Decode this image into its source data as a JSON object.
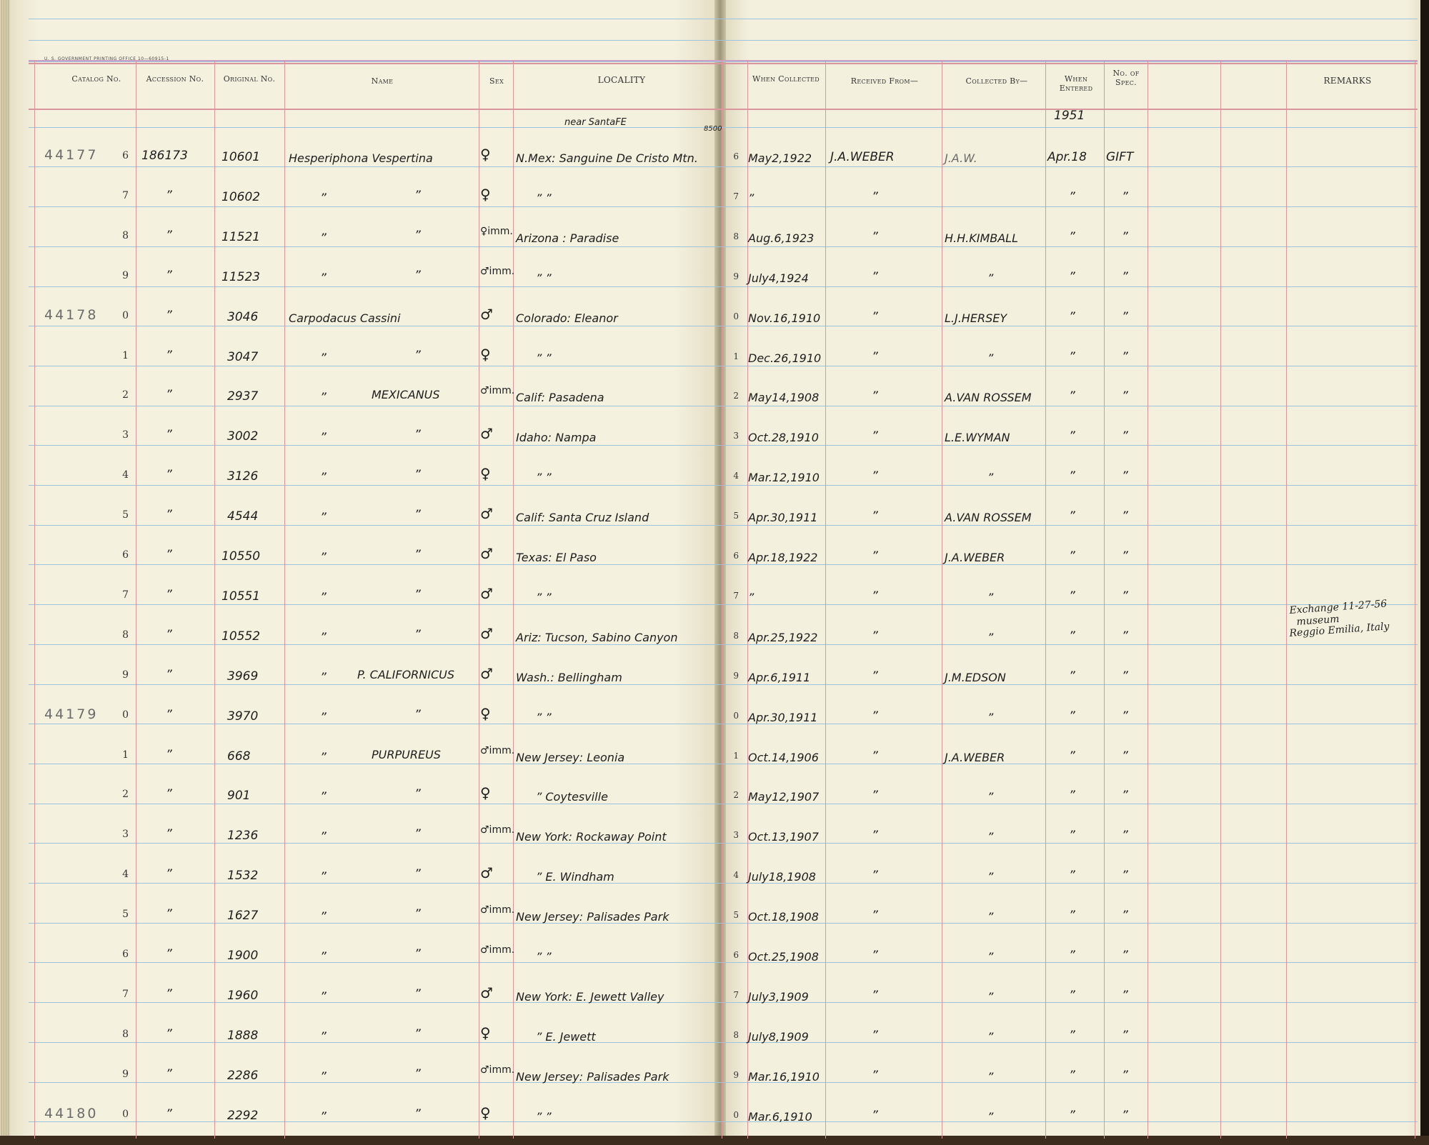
{
  "header": {
    "printer": "U. S. GOVERNMENT PRINTING OFFICE    10—60915-1",
    "columns": {
      "catalog": "Catalog No.",
      "accession": "Accession No.",
      "original": "Original No.",
      "name": "Name",
      "sex": "Sex",
      "locality": "LOCALITY",
      "when_collected": "When Collected",
      "received_from": "Received From—",
      "collected_by": "Collected By—",
      "when_entered": "When Entered",
      "no_spec": "No. of Spec.",
      "remarks": "REMARKS"
    }
  },
  "annotations": {
    "near_santa_fe": "near SantaFE",
    "elevation": "8500",
    "year_entered": "1951"
  },
  "catalog_markers": [
    "44177",
    "44178",
    "44179",
    "44180"
  ],
  "rows": [
    {
      "catalog": "44177",
      "idx": "6",
      "accession": "186173",
      "original": "10601",
      "name": "Hesperiphona Vespertina",
      "sex": "♀",
      "locality": "N.Mex: Sanguine De Cristo Mtn.",
      "ridx": "6",
      "when": "May2,1922",
      "received": "J.A.WEBER",
      "collected": "J.A.W.",
      "entered": "Apr.18",
      "spec": "GIFT"
    },
    {
      "idx": "7",
      "accession": "”",
      "original": "10602",
      "name_a": "”",
      "name_b": "”",
      "sex": "♀",
      "locality": "”      ”",
      "ridx": "7",
      "when": "”",
      "received": "”",
      "collected": "",
      "entered": "”",
      "spec": "”"
    },
    {
      "idx": "8",
      "accession": "”",
      "original": "11521",
      "name_a": "”",
      "name_b": "”",
      "sex": "♀imm.",
      "locality": "Arizona : Paradise",
      "ridx": "8",
      "when": "Aug.6,1923",
      "received": "”",
      "collected": "H.H.KIMBALL",
      "entered": "”",
      "spec": "”"
    },
    {
      "idx": "9",
      "accession": "”",
      "original": "11523",
      "name_a": "”",
      "name_b": "”",
      "sex": "♂imm.",
      "locality": "”           ”",
      "ridx": "9",
      "when": "July4,1924",
      "received": "”",
      "collected": "”",
      "entered": "”",
      "spec": "”"
    },
    {
      "catalog": "44178",
      "idx": "0",
      "accession": "”",
      "original": "3046",
      "name": "Carpodacus Cassini",
      "sex": "♂",
      "locality": "Colorado: Eleanor",
      "ridx": "0",
      "when": "Nov.16,1910",
      "received": "”",
      "collected": "L.J.HERSEY",
      "entered": "”",
      "spec": "”"
    },
    {
      "idx": "1",
      "accession": "”",
      "original": "3047",
      "name_a": "”",
      "name_b": "”",
      "sex": "♀",
      "locality": "”          ”",
      "ridx": "1",
      "when": "Dec.26,1910",
      "received": "”",
      "collected": "”",
      "entered": "”",
      "spec": "”"
    },
    {
      "idx": "2",
      "accession": "”",
      "original": "2937",
      "name_a": "”",
      "name_b": "MEXICANUS",
      "sex": "♂imm.",
      "locality": "Calif: Pasadena",
      "ridx": "2",
      "when": "May14,1908",
      "received": "”",
      "collected": "A.VAN ROSSEM",
      "entered": "”",
      "spec": "”"
    },
    {
      "idx": "3",
      "accession": "”",
      "original": "3002",
      "name_a": "”",
      "name_b": "”",
      "sex": "♂",
      "locality": "Idaho: Nampa",
      "ridx": "3",
      "when": "Oct.28,1910",
      "received": "”",
      "collected": "L.E.WYMAN",
      "entered": "”",
      "spec": "”"
    },
    {
      "idx": "4",
      "accession": "”",
      "original": "3126",
      "name_a": "”",
      "name_b": "”",
      "sex": "♀",
      "locality": "”          ”",
      "ridx": "4",
      "when": "Mar.12,1910",
      "received": "”",
      "collected": "”",
      "entered": "”",
      "spec": "”"
    },
    {
      "idx": "5",
      "accession": "”",
      "original": "4544",
      "name_a": "”",
      "name_b": "”",
      "sex": "♂",
      "locality": "Calif: Santa Cruz Island",
      "ridx": "5",
      "when": "Apr.30,1911",
      "received": "”",
      "collected": "A.VAN ROSSEM",
      "entered": "”",
      "spec": "”"
    },
    {
      "idx": "6",
      "accession": "”",
      "original": "10550",
      "name_a": "”",
      "name_b": "”",
      "sex": "♂",
      "locality": "Texas: El Paso",
      "ridx": "6",
      "when": "Apr.18,1922",
      "received": "”",
      "collected": "J.A.WEBER",
      "entered": "”",
      "spec": "”"
    },
    {
      "idx": "7",
      "accession": "”",
      "original": "10551",
      "name_a": "”",
      "name_b": "”",
      "sex": "♂",
      "locality": "”          ”",
      "ridx": "7",
      "when": "”",
      "received": "”",
      "collected": "”",
      "entered": "”",
      "spec": "”"
    },
    {
      "idx": "8",
      "accession": "”",
      "original": "10552",
      "name_a": "”",
      "name_b": "”",
      "sex": "♂",
      "locality": "Ariz: Tucson, Sabino Canyon",
      "ridx": "8",
      "when": "Apr.25,1922",
      "received": "”",
      "collected": "”",
      "entered": "”",
      "spec": "”",
      "remark": [
        "Exchange 11-27-56",
        "museum",
        "Reggio Emilia, Italy"
      ]
    },
    {
      "idx": "9",
      "accession": "”",
      "original": "3969",
      "name_a": "”",
      "name_b": "P. CALIFORNICUS",
      "sex": "♂",
      "locality": "Wash.: Bellingham",
      "ridx": "9",
      "when": "Apr.6,1911",
      "received": "”",
      "collected": "J.M.EDSON",
      "entered": "”",
      "spec": "”"
    },
    {
      "catalog": "44179",
      "idx": "0",
      "accession": "”",
      "original": "3970",
      "name_a": "”",
      "name_b": "”",
      "sex": "♀",
      "locality": "”          ”",
      "ridx": "0",
      "when": "Apr.30,1911",
      "received": "”",
      "collected": "”",
      "entered": "”",
      "spec": "”"
    },
    {
      "idx": "1",
      "accession": "”",
      "original": "668",
      "name_a": "”",
      "name_b": "PURPUREUS",
      "sex": "♂imm.",
      "locality": "New Jersey: Leonia",
      "ridx": "1",
      "when": "Oct.14,1906",
      "received": "”",
      "collected": "J.A.WEBER",
      "entered": "”",
      "spec": "”"
    },
    {
      "idx": "2",
      "accession": "”",
      "original": "901",
      "name_a": "”",
      "name_b": "”",
      "sex": "♀",
      "locality": "”       Coytesville",
      "ridx": "2",
      "when": "May12,1907",
      "received": "”",
      "collected": "”",
      "entered": "”",
      "spec": "”"
    },
    {
      "idx": "3",
      "accession": "”",
      "original": "1236",
      "name_a": "”",
      "name_b": "”",
      "sex": "♂imm.",
      "locality": "New York: Rockaway Point",
      "ridx": "3",
      "when": "Oct.13,1907",
      "received": "”",
      "collected": "”",
      "entered": "”",
      "spec": "”"
    },
    {
      "idx": "4",
      "accession": "”",
      "original": "1532",
      "name_a": "”",
      "name_b": "”",
      "sex": "♂",
      "locality": "”    E. Windham",
      "ridx": "4",
      "when": "July18,1908",
      "received": "”",
      "collected": "”",
      "entered": "”",
      "spec": "”"
    },
    {
      "idx": "5",
      "accession": "”",
      "original": "1627",
      "name_a": "”",
      "name_b": "”",
      "sex": "♂imm.",
      "locality": "New Jersey: Palisades Park",
      "ridx": "5",
      "when": "Oct.18,1908",
      "received": "”",
      "collected": "”",
      "entered": "”",
      "spec": "”"
    },
    {
      "idx": "6",
      "accession": "”",
      "original": "1900",
      "name_a": "”",
      "name_b": "”",
      "sex": "♂imm.",
      "locality": "”          ”",
      "ridx": "6",
      "when": "Oct.25,1908",
      "received": "”",
      "collected": "”",
      "entered": "”",
      "spec": "”"
    },
    {
      "idx": "7",
      "accession": "”",
      "original": "1960",
      "name_a": "”",
      "name_b": "”",
      "sex": "♂",
      "locality": "New York: E. Jewett Valley",
      "ridx": "7",
      "when": "July3,1909",
      "received": "”",
      "collected": "”",
      "entered": "”",
      "spec": "”"
    },
    {
      "idx": "8",
      "accession": "”",
      "original": "1888",
      "name_a": "”",
      "name_b": "”",
      "sex": "♀",
      "locality": "”       E. Jewett",
      "ridx": "8",
      "when": "July8,1909",
      "received": "”",
      "collected": "”",
      "entered": "”",
      "spec": "”"
    },
    {
      "idx": "9",
      "accession": "”",
      "original": "2286",
      "name_a": "”",
      "name_b": "”",
      "sex": "♂imm.",
      "locality": "New Jersey: Palisades Park",
      "ridx": "9",
      "when": "Mar.16,1910",
      "received": "”",
      "collected": "”",
      "entered": "”",
      "spec": "”"
    },
    {
      "catalog": "44180",
      "idx": "0",
      "accession": "”",
      "original": "2292",
      "name_a": "”",
      "name_b": "”",
      "sex": "♀",
      "locality": "”          ”",
      "ridx": "0",
      "when": "Mar.6,1910",
      "received": "”",
      "collected": "”",
      "entered": "”",
      "spec": "”"
    }
  ]
}
